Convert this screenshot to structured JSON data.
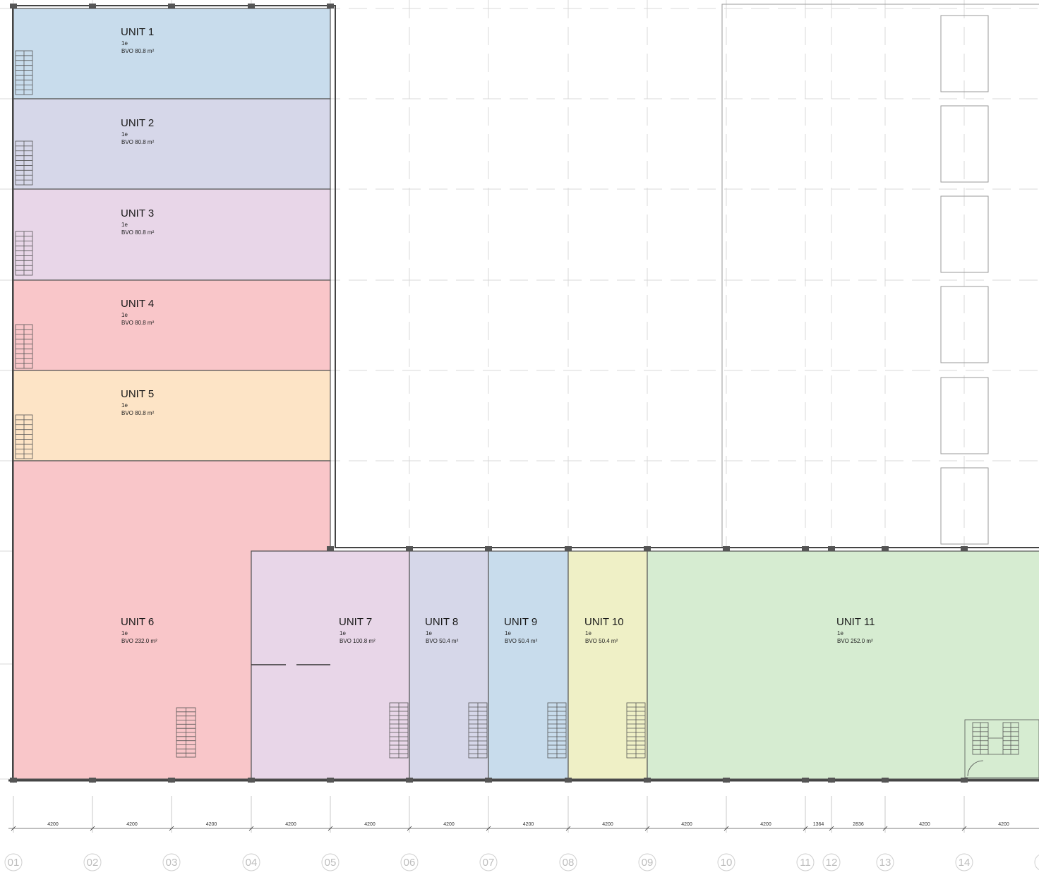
{
  "colors": {
    "blue": "#c8dcec",
    "lavender": "#d6d7e9",
    "pink": "#e8d6e8",
    "red": "#f9c6c9",
    "orange": "#fde4c6",
    "yellow": "#eff0c6",
    "green": "#d6ecd1"
  },
  "units": [
    {
      "name": "UNIT 1",
      "floor": "1e",
      "area": "BVO 80.8 m²",
      "color": "blue"
    },
    {
      "name": "UNIT 2",
      "floor": "1e",
      "area": "BVO 80.8 m²",
      "color": "lavender"
    },
    {
      "name": "UNIT 3",
      "floor": "1e",
      "area": "BVO 80.8 m²",
      "color": "pink"
    },
    {
      "name": "UNIT 4",
      "floor": "1e",
      "area": "BVO 80.8 m²",
      "color": "red"
    },
    {
      "name": "UNIT 5",
      "floor": "1e",
      "area": "BVO 80.8 m²",
      "color": "orange"
    },
    {
      "name": "UNIT 6",
      "floor": "1e",
      "area": "BVO 232.0 m²",
      "color": "red"
    },
    {
      "name": "UNIT 7",
      "floor": "1e",
      "area": "BVO 100.8 m²",
      "color": "pink"
    },
    {
      "name": "UNIT 8",
      "floor": "1e",
      "area": "BVO 50.4 m²",
      "color": "lavender"
    },
    {
      "name": "UNIT 9",
      "floor": "1e",
      "area": "BVO 50.4 m²",
      "color": "blue"
    },
    {
      "name": "UNIT 10",
      "floor": "1e",
      "area": "BVO 50.4 m²",
      "color": "yellow"
    },
    {
      "name": "UNIT 11",
      "floor": "1e",
      "area": "BVO 252.0 m²",
      "color": "green"
    }
  ],
  "dimensions": [
    "4200",
    "4200",
    "4200",
    "4200",
    "4200",
    "4200",
    "4200",
    "4200",
    "4200",
    "4200",
    "1364",
    "2836",
    "4200",
    "4200"
  ],
  "axes": [
    "01",
    "02",
    "03",
    "04",
    "05",
    "06",
    "07",
    "08",
    "09",
    "10",
    "11",
    "12",
    "13",
    "14"
  ]
}
